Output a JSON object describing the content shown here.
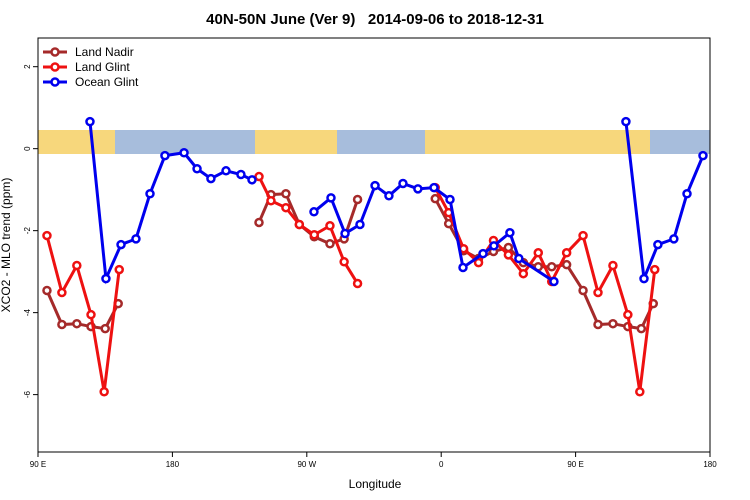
{
  "chart_data": {
    "type": "line",
    "title": "40N-50N June (Ver 9)   2014-09-06 to 2018-12-31",
    "x_label": "Longitude",
    "y_label": "XCO2 - MLO trend (ppm)",
    "xlim": [
      90,
      540
    ],
    "xticks": [
      {
        "value": 90,
        "label": "90 E"
      },
      {
        "value": 180,
        "label": "180"
      },
      {
        "value": 270,
        "label": "90 W"
      },
      {
        "value": 360,
        "label": "0"
      },
      {
        "value": 450,
        "label": "90 E"
      },
      {
        "value": 540,
        "label": "180"
      }
    ],
    "ylim": [
      -7.4,
      2.7
    ],
    "yticks": [
      2,
      0,
      -2,
      -4,
      -6
    ],
    "legend": "top-left",
    "series": [
      {
        "name": "Land Nadir",
        "color": "#a52a2a",
        "x": [
          96,
          106,
          116,
          125.5,
          135,
          143.7,
          null,
          238,
          246,
          256,
          265,
          275,
          285.5,
          295,
          304,
          null,
          356,
          365,
          375,
          385,
          395,
          405,
          415,
          425,
          434,
          444,
          455,
          465,
          475,
          485,
          494,
          502
        ],
        "values": [
          -3.46,
          -4.29,
          -4.27,
          -4.34,
          -4.39,
          -3.78,
          null,
          -1.8,
          -1.12,
          -1.1,
          -1.85,
          -2.15,
          -2.32,
          -2.2,
          -1.24,
          null,
          -1.22,
          -1.83,
          -2.49,
          -2.68,
          -2.51,
          -2.41,
          -2.78,
          -2.88,
          -2.88,
          -2.83,
          -3.46,
          -4.29,
          -4.27,
          -4.34,
          -4.39,
          -3.78
        ]
      },
      {
        "name": "Land Glint",
        "color": "#ee1111",
        "x": [
          96,
          106,
          116,
          125.5,
          134.3,
          144.4,
          null,
          238,
          246,
          256,
          265,
          275,
          285.5,
          295,
          304,
          null,
          356,
          365,
          375,
          385,
          395,
          405,
          415,
          425,
          434,
          444,
          455,
          465,
          475,
          485,
          493,
          503
        ],
        "values": [
          -2.12,
          -3.51,
          -2.85,
          -4.05,
          -5.93,
          -2.95,
          null,
          -0.68,
          -1.27,
          -1.44,
          -1.85,
          -2.1,
          -1.88,
          -2.76,
          -3.29,
          null,
          -0.95,
          -1.56,
          -2.44,
          -2.78,
          -2.24,
          -2.59,
          -3.05,
          -2.54,
          -3.24,
          -2.54,
          -2.12,
          -3.51,
          -2.85,
          -4.05,
          -5.93,
          -2.95
        ]
      },
      {
        "name": "Ocean Glint",
        "color": "#0000ee",
        "x": [
          124.8,
          135.5,
          145.6,
          155.6,
          165,
          175,
          187.8,
          196.5,
          205.8,
          215.9,
          225.9,
          233.3,
          null,
          274.8,
          286.2,
          295.6,
          305.6,
          315.7,
          325,
          334.4,
          344.4,
          355.2,
          365.9,
          374.6,
          388,
          395.3,
          406,
          412,
          435.5,
          null,
          483.7,
          495.8,
          505.1,
          515.8,
          524.6,
          535.3
        ],
        "values": [
          0.66,
          -3.17,
          -2.34,
          -2.2,
          -1.1,
          -0.17,
          -0.1,
          -0.49,
          -0.73,
          -0.54,
          -0.63,
          -0.76,
          null,
          -1.54,
          -1.2,
          -2.07,
          -1.85,
          -0.9,
          -1.15,
          -0.85,
          -0.98,
          -0.95,
          -1.24,
          -2.9,
          -2.56,
          -2.37,
          -2.05,
          -2.68,
          -3.24,
          null,
          0.66,
          -3.17,
          -2.34,
          -2.2,
          -1.1,
          -0.17
        ]
      }
    ]
  }
}
